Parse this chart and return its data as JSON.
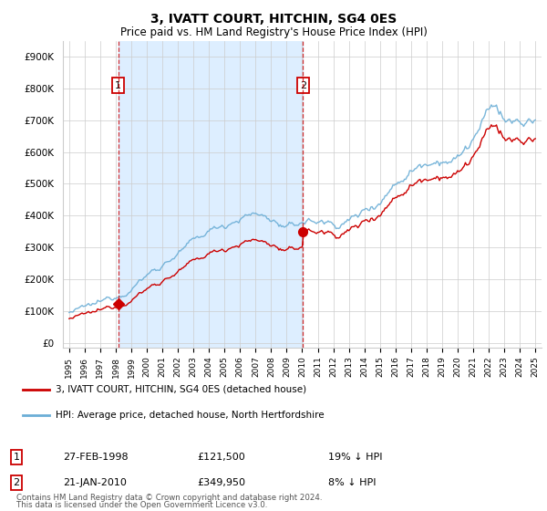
{
  "title": "3, IVATT COURT, HITCHIN, SG4 0ES",
  "subtitle": "Price paid vs. HM Land Registry's House Price Index (HPI)",
  "purchase1_date": "27-FEB-1998",
  "purchase1_price": 121500,
  "purchase1_label": "19% ↓ HPI",
  "purchase1_year": 1998.15,
  "purchase2_date": "21-JAN-2010",
  "purchase2_price": 349950,
  "purchase2_label": "8% ↓ HPI",
  "purchase2_year": 2010.05,
  "legend_line1": "3, IVATT COURT, HITCHIN, SG4 0ES (detached house)",
  "legend_line2": "HPI: Average price, detached house, North Hertfordshire",
  "footer1": "Contains HM Land Registry data © Crown copyright and database right 2024.",
  "footer2": "This data is licensed under the Open Government Licence v3.0.",
  "hpi_color": "#6baed6",
  "price_color": "#cc0000",
  "shade_color": "#ddeeff",
  "dashed_color": "#cc0000",
  "label_box_color": "#cc0000",
  "ylim_max": 950000,
  "yticks": [
    0,
    100000,
    200000,
    300000,
    400000,
    500000,
    600000,
    700000,
    800000,
    900000
  ],
  "hpi_anchors_x": [
    1995,
    1996,
    1997,
    1998,
    1999,
    2000,
    2001,
    2002,
    2003,
    2004,
    2005,
    2006,
    2007,
    2008,
    2008.5,
    2009,
    2009.5,
    2010,
    2011,
    2012,
    2013,
    2014,
    2015,
    2016,
    2017,
    2018,
    2019,
    2020,
    2021,
    2022,
    2022.5,
    2023,
    2024,
    2025
  ],
  "hpi_anchors_y": [
    95000,
    107000,
    122000,
    148000,
    178000,
    215000,
    248000,
    282000,
    313000,
    348000,
    373000,
    398000,
    405000,
    390000,
    375000,
    355000,
    360000,
    382000,
    382000,
    375000,
    385000,
    415000,
    455000,
    505000,
    548000,
    578000,
    592000,
    580000,
    640000,
    715000,
    740000,
    700000,
    685000,
    690000
  ]
}
